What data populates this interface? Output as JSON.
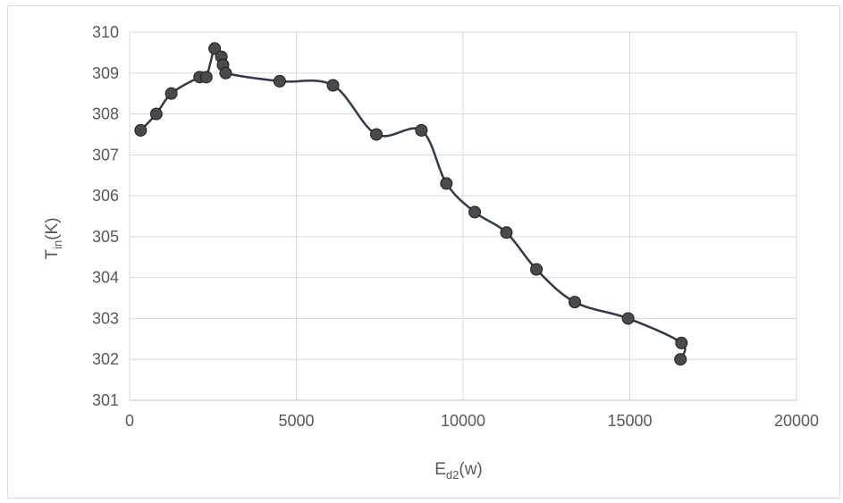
{
  "chart_data": {
    "type": "scatter",
    "title": "",
    "xlabel": {
      "main": "E",
      "sub": "d2",
      "rest": "(w)"
    },
    "ylabel": {
      "main": "T",
      "sub": "in",
      "rest": "(K)"
    },
    "xlim": [
      0,
      20000
    ],
    "ylim": [
      301,
      310
    ],
    "xticks": [
      0,
      5000,
      10000,
      15000,
      20000
    ],
    "yticks": [
      301,
      302,
      303,
      304,
      305,
      306,
      307,
      308,
      309,
      310
    ],
    "xtick_labels": [
      "0",
      "5000",
      "10000",
      "15000",
      "20000"
    ],
    "ytick_labels": [
      "301",
      "302",
      "303",
      "304",
      "305",
      "306",
      "307",
      "308",
      "309",
      "310"
    ],
    "grid": true,
    "smooth_line": true,
    "line_color": "#2e3b4e",
    "marker_color": "#4a4a4a",
    "series": [
      {
        "x": [
          330,
          800,
          1250,
          2100,
          2300,
          2550,
          2750,
          2800,
          2880,
          4500,
          6100,
          7400,
          8750,
          9500,
          10350,
          11300,
          12200,
          13350,
          14950,
          16550,
          16520
        ],
        "y": [
          307.6,
          308.0,
          308.5,
          308.9,
          308.9,
          309.6,
          309.4,
          309.2,
          309.0,
          308.8,
          308.7,
          307.5,
          307.6,
          306.3,
          305.6,
          305.1,
          304.2,
          303.4,
          303.0,
          302.4,
          302.0
        ]
      }
    ]
  }
}
